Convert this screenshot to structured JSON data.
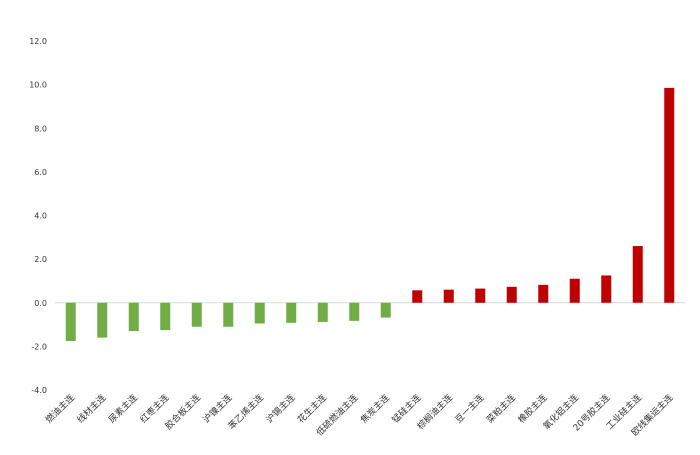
{
  "chart_data": {
    "type": "bar",
    "categories": [
      "燃油主连",
      "线材主连",
      "尿素主连",
      "红枣主连",
      "胶合板主连",
      "沪镍主连",
      "苯乙烯主连",
      "沪锡主连",
      "花生主连",
      "低硫燃油主连",
      "焦炭主连",
      "锰硅主连",
      "棕榈油主连",
      "豆一主连",
      "菜粕主连",
      "橡胶主连",
      "氧化铝主连",
      "20号胶主连",
      "工业硅主连",
      "欧线集运主连"
    ],
    "values": [
      -1.75,
      -1.6,
      -1.3,
      -1.25,
      -1.1,
      -1.1,
      -0.95,
      -0.92,
      -0.88,
      -0.83,
      -0.68,
      0.57,
      0.6,
      0.65,
      0.73,
      0.82,
      1.1,
      1.25,
      2.6,
      9.85
    ],
    "yticks": [
      "-4.0",
      "-2.0",
      "0.0",
      "2.0",
      "4.0",
      "6.0",
      "8.0",
      "10.0",
      "12.0"
    ],
    "ylim": [
      -4,
      12
    ],
    "grid": false,
    "colors": {
      "negative": "#70ad47",
      "positive": "#c00000",
      "axis": "#d9d9d9"
    }
  }
}
